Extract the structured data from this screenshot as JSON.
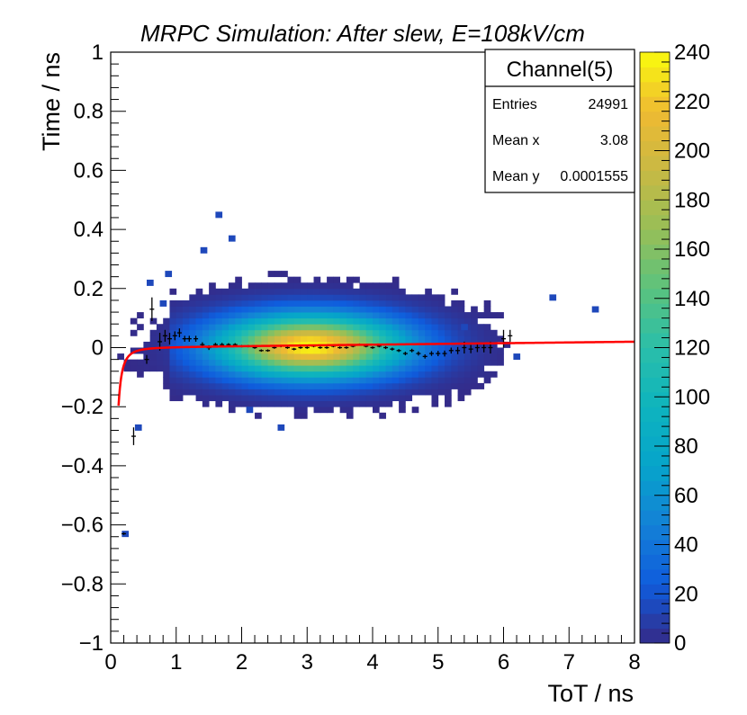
{
  "chart_data": {
    "type": "heatmap",
    "title": "MRPC Simulation: After slew, E=108kV/cm",
    "xlabel": "ToT / ns",
    "ylabel": "Time / ns",
    "xlim": [
      0,
      8
    ],
    "ylim": [
      -1,
      1
    ],
    "zlim": [
      0,
      240
    ],
    "x_ticks": [
      "0",
      "1",
      "2",
      "3",
      "4",
      "5",
      "6",
      "7",
      "8"
    ],
    "y_ticks": [
      "−1",
      "−0.8",
      "−0.6",
      "−0.4",
      "−0.2",
      "0",
      "0.2",
      "0.4",
      "0.6",
      "0.8",
      "1"
    ],
    "z_ticks": [
      "0",
      "20",
      "40",
      "60",
      "80",
      "100",
      "120",
      "140",
      "160",
      "180",
      "200",
      "220",
      "240"
    ],
    "distribution": {
      "center_x": 3.05,
      "center_y": 0.005,
      "sigma_x": 0.95,
      "sigma_y": 0.07,
      "peak_count": 240,
      "bins_x": 80,
      "bins_y": 100
    },
    "outliers": [
      {
        "x": 1.65,
        "y": 0.45
      },
      {
        "x": 1.85,
        "y": 0.37
      },
      {
        "x": 1.42,
        "y": 0.33
      },
      {
        "x": 6.75,
        "y": 0.17
      },
      {
        "x": 7.4,
        "y": 0.13
      },
      {
        "x": 0.6,
        "y": 0.22
      },
      {
        "x": 0.88,
        "y": 0.25
      },
      {
        "x": 0.8,
        "y": 0.15
      },
      {
        "x": 0.42,
        "y": -0.27
      },
      {
        "x": 0.22,
        "y": -0.63
      },
      {
        "x": 2.6,
        "y": -0.27
      },
      {
        "x": 2.12,
        "y": -0.21
      },
      {
        "x": 6.2,
        "y": -0.03
      },
      {
        "x": 5.4,
        "y": 0.07
      }
    ],
    "profile": [
      {
        "x": 0.2,
        "y": -0.63,
        "err": 0.0
      },
      {
        "x": 0.35,
        "y": -0.3,
        "err": 0.03
      },
      {
        "x": 0.55,
        "y": -0.04,
        "err": 0.015
      },
      {
        "x": 0.63,
        "y": 0.13,
        "err": 0.04
      },
      {
        "x": 0.75,
        "y": 0.02,
        "err": 0.03
      },
      {
        "x": 0.83,
        "y": 0.04,
        "err": 0.02
      },
      {
        "x": 0.9,
        "y": 0.03,
        "err": 0.02
      },
      {
        "x": 0.98,
        "y": 0.04,
        "err": 0.015
      },
      {
        "x": 1.05,
        "y": 0.05,
        "err": 0.015
      },
      {
        "x": 1.13,
        "y": 0.03,
        "err": 0.01
      },
      {
        "x": 1.2,
        "y": 0.03,
        "err": 0.01
      },
      {
        "x": 1.3,
        "y": 0.03,
        "err": 0.01
      },
      {
        "x": 1.4,
        "y": 0.01,
        "err": 0.008
      },
      {
        "x": 1.5,
        "y": 0.0,
        "err": 0.008
      },
      {
        "x": 1.6,
        "y": 0.01,
        "err": 0.006
      },
      {
        "x": 1.7,
        "y": 0.01,
        "err": 0.006
      },
      {
        "x": 1.8,
        "y": 0.01,
        "err": 0.005
      },
      {
        "x": 1.9,
        "y": 0.01,
        "err": 0.005
      },
      {
        "x": 2.0,
        "y": 0.005,
        "err": 0.004
      },
      {
        "x": 2.1,
        "y": 0.005,
        "err": 0.004
      },
      {
        "x": 2.2,
        "y": 0.0,
        "err": 0.003
      },
      {
        "x": 2.3,
        "y": -0.01,
        "err": 0.003
      },
      {
        "x": 2.4,
        "y": -0.01,
        "err": 0.003
      },
      {
        "x": 2.5,
        "y": 0.0,
        "err": 0.003
      },
      {
        "x": 2.6,
        "y": 0.005,
        "err": 0.003
      },
      {
        "x": 2.7,
        "y": 0.0,
        "err": 0.003
      },
      {
        "x": 2.8,
        "y": -0.005,
        "err": 0.003
      },
      {
        "x": 2.9,
        "y": 0.0,
        "err": 0.003
      },
      {
        "x": 3.0,
        "y": 0.0,
        "err": 0.003
      },
      {
        "x": 3.1,
        "y": 0.005,
        "err": 0.003
      },
      {
        "x": 3.2,
        "y": 0.0,
        "err": 0.003
      },
      {
        "x": 3.3,
        "y": 0.0,
        "err": 0.003
      },
      {
        "x": 3.4,
        "y": 0.005,
        "err": 0.003
      },
      {
        "x": 3.5,
        "y": 0.0,
        "err": 0.003
      },
      {
        "x": 3.6,
        "y": 0.0,
        "err": 0.003
      },
      {
        "x": 3.7,
        "y": 0.005,
        "err": 0.003
      },
      {
        "x": 3.8,
        "y": 0.01,
        "err": 0.004
      },
      {
        "x": 3.9,
        "y": 0.005,
        "err": 0.004
      },
      {
        "x": 4.0,
        "y": 0.0,
        "err": 0.004
      },
      {
        "x": 4.1,
        "y": 0.005,
        "err": 0.004
      },
      {
        "x": 4.2,
        "y": 0.0,
        "err": 0.005
      },
      {
        "x": 4.3,
        "y": -0.005,
        "err": 0.005
      },
      {
        "x": 4.4,
        "y": -0.01,
        "err": 0.005
      },
      {
        "x": 4.5,
        "y": -0.02,
        "err": 0.006
      },
      {
        "x": 4.6,
        "y": -0.01,
        "err": 0.006
      },
      {
        "x": 4.7,
        "y": -0.02,
        "err": 0.007
      },
      {
        "x": 4.8,
        "y": -0.03,
        "err": 0.007
      },
      {
        "x": 4.9,
        "y": -0.02,
        "err": 0.008
      },
      {
        "x": 5.0,
        "y": -0.02,
        "err": 0.009
      },
      {
        "x": 5.1,
        "y": -0.02,
        "err": 0.01
      },
      {
        "x": 5.2,
        "y": -0.01,
        "err": 0.01
      },
      {
        "x": 5.3,
        "y": -0.01,
        "err": 0.012
      },
      {
        "x": 5.4,
        "y": 0.0,
        "err": 0.02
      },
      {
        "x": 5.5,
        "y": -0.005,
        "err": 0.014
      },
      {
        "x": 5.6,
        "y": 0.0,
        "err": 0.015
      },
      {
        "x": 5.7,
        "y": 0.0,
        "err": 0.016
      },
      {
        "x": 5.8,
        "y": 0.0,
        "err": 0.02
      },
      {
        "x": 6.0,
        "y": 0.03,
        "err": 0.03
      },
      {
        "x": 6.1,
        "y": 0.04,
        "err": 0.02
      }
    ],
    "fit": {
      "function": "a + b*x - c/x^d",
      "color": "#ff0000",
      "a": 0.0,
      "b": 0.0025,
      "c": 0.0015,
      "d": 2.3
    },
    "stats": {
      "name": "Channel(5)",
      "entries_label": "Entries",
      "entries": "24991",
      "mean_x_label": "Mean x",
      "mean_x": "3.08",
      "mean_y_label": "Mean y",
      "mean_y": "0.0001555"
    }
  }
}
